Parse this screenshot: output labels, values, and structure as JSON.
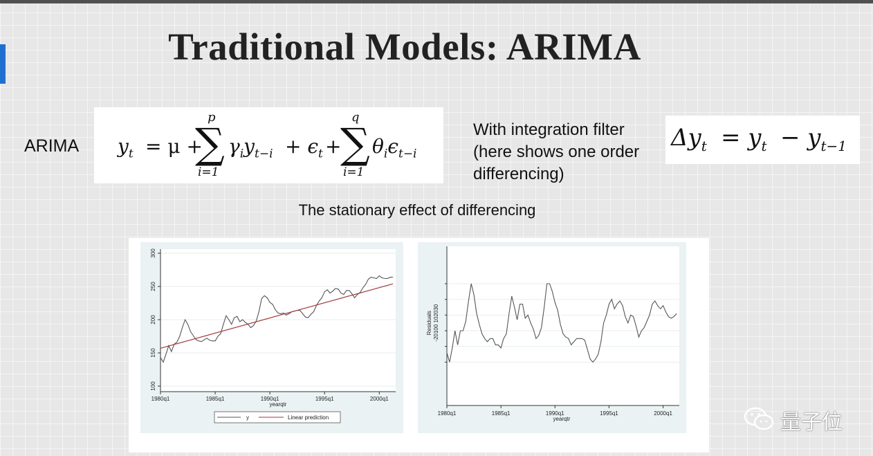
{
  "slide": {
    "title": "Traditional Models:  ARIMA",
    "arima_label": "ARIMA",
    "filter_text": [
      "With integration filter",
      "(here shows one order",
      "differencing)"
    ],
    "subtitle": "The stationary effect of differencing",
    "watermark": "量子位"
  },
  "equations": {
    "arima": {
      "lhs": "y",
      "lhs_sub": "t",
      "eq": "= μ +",
      "sum1_upper": "p",
      "sum1_lower": "i=1",
      "term1": "γ",
      "term1_sub": "i",
      "term1b": "y",
      "term1b_sub": "t−i",
      "mid": "+ ϵ",
      "mid_sub": "t",
      "plus": "+",
      "sum2_upper": "q",
      "sum2_lower": "i=1",
      "term2": "θ",
      "term2_sub": "i",
      "term2b": "ϵ",
      "term2b_sub": "t−i"
    },
    "diff": {
      "lhs": "Δy",
      "lhs_sub": "t",
      "eq": "= y",
      "rhs_sub": "t",
      "minus": "− y",
      "minus_sub": "t−1"
    }
  },
  "chart_data": [
    {
      "type": "line",
      "xlabel": "yearqtr",
      "ylabel": "",
      "x_ticks": [
        "1980q1",
        "1985q1",
        "1990q1",
        "1995q1",
        "2000q1"
      ],
      "y_ticks": [
        "100",
        "150",
        "200",
        "250",
        "300"
      ],
      "ylim": [
        100,
        300
      ],
      "xlim": [
        0,
        86
      ],
      "legend": "bottom",
      "series": [
        {
          "name": "y",
          "color": "#555555",
          "x": [
            0,
            1,
            2,
            3,
            4,
            5,
            6,
            7,
            8,
            9,
            10,
            11,
            12,
            13,
            14,
            15,
            16,
            17,
            18,
            19,
            20,
            21,
            22,
            23,
            24,
            25,
            26,
            27,
            28,
            29,
            30,
            31,
            32,
            33,
            34,
            35,
            36,
            37,
            38,
            39,
            40,
            41,
            42,
            43,
            44,
            45,
            46,
            47,
            48,
            49,
            50,
            51,
            52,
            53,
            54,
            55,
            56,
            57,
            58,
            59,
            60,
            61,
            62,
            63,
            64,
            65,
            66,
            67,
            68,
            69,
            70,
            71,
            72,
            73,
            74,
            75,
            76,
            77,
            78,
            79,
            80,
            81,
            82,
            83,
            84,
            85
          ],
          "y": [
            143,
            136,
            148,
            161,
            152,
            163,
            166,
            175,
            188,
            200,
            193,
            182,
            176,
            170,
            168,
            167,
            170,
            172,
            169,
            168,
            168,
            175,
            179,
            193,
            206,
            200,
            193,
            203,
            205,
            197,
            200,
            196,
            193,
            188,
            191,
            198,
            212,
            232,
            236,
            233,
            226,
            223,
            215,
            210,
            209,
            210,
            207,
            209,
            212,
            213,
            214,
            214,
            209,
            204,
            203,
            208,
            212,
            221,
            228,
            233,
            242,
            245,
            240,
            243,
            247,
            246,
            240,
            238,
            244,
            244,
            239,
            233,
            238,
            241,
            248,
            253,
            261,
            264,
            263,
            262,
            266,
            263,
            262,
            262,
            264,
            264
          ]
        },
        {
          "name": "Linear prediction",
          "color": "#a23a3a",
          "x": [
            0,
            85
          ],
          "y": [
            157,
            254
          ]
        }
      ]
    },
    {
      "type": "line",
      "xlabel": "yearqtr",
      "ylabel": "Residuals",
      "y_tick_text": "-20100 102030",
      "x_ticks": [
        "1980q1",
        "1985q1",
        "1990q1",
        "1995q1",
        "2000q1"
      ],
      "ylim": [
        -30,
        45
      ],
      "xlim": [
        0,
        86
      ],
      "series": [
        {
          "name": "",
          "color": "#555555",
          "x": [
            0,
            1,
            2,
            3,
            4,
            5,
            6,
            7,
            8,
            9,
            10,
            11,
            12,
            13,
            14,
            15,
            16,
            17,
            18,
            19,
            20,
            21,
            22,
            23,
            24,
            25,
            26,
            27,
            28,
            29,
            30,
            31,
            32,
            33,
            34,
            35,
            36,
            37,
            38,
            39,
            40,
            41,
            42,
            43,
            44,
            45,
            46,
            47,
            48,
            49,
            50,
            51,
            52,
            53,
            54,
            55,
            56,
            57,
            58,
            59,
            60,
            61,
            62,
            63,
            64,
            65,
            66,
            67,
            68,
            69,
            70,
            71,
            72,
            73,
            74,
            75,
            76,
            77,
            78,
            79,
            80,
            81,
            82,
            83,
            84,
            85
          ],
          "y": [
            -14,
            -20,
            -11,
            0,
            -9,
            0,
            0,
            6,
            19,
            30,
            23,
            11,
            4,
            -2,
            -5,
            -7,
            -5,
            -5,
            -9,
            -9,
            -11,
            -5,
            -2,
            11,
            22,
            15,
            7,
            17,
            17,
            8,
            10,
            5,
            1,
            -5,
            -3,
            2,
            15,
            30,
            30,
            25,
            18,
            13,
            4,
            -2,
            -4,
            -5,
            -9,
            -7,
            -5,
            -5,
            -5,
            -6,
            -12,
            -18,
            -20,
            -18,
            -15,
            -7,
            5,
            10,
            17,
            20,
            14,
            17,
            19,
            16,
            9,
            5,
            10,
            9,
            3,
            -4,
            0,
            2,
            6,
            10,
            17,
            19,
            16,
            14,
            16,
            12,
            9,
            8,
            9,
            11
          ]
        }
      ]
    }
  ]
}
